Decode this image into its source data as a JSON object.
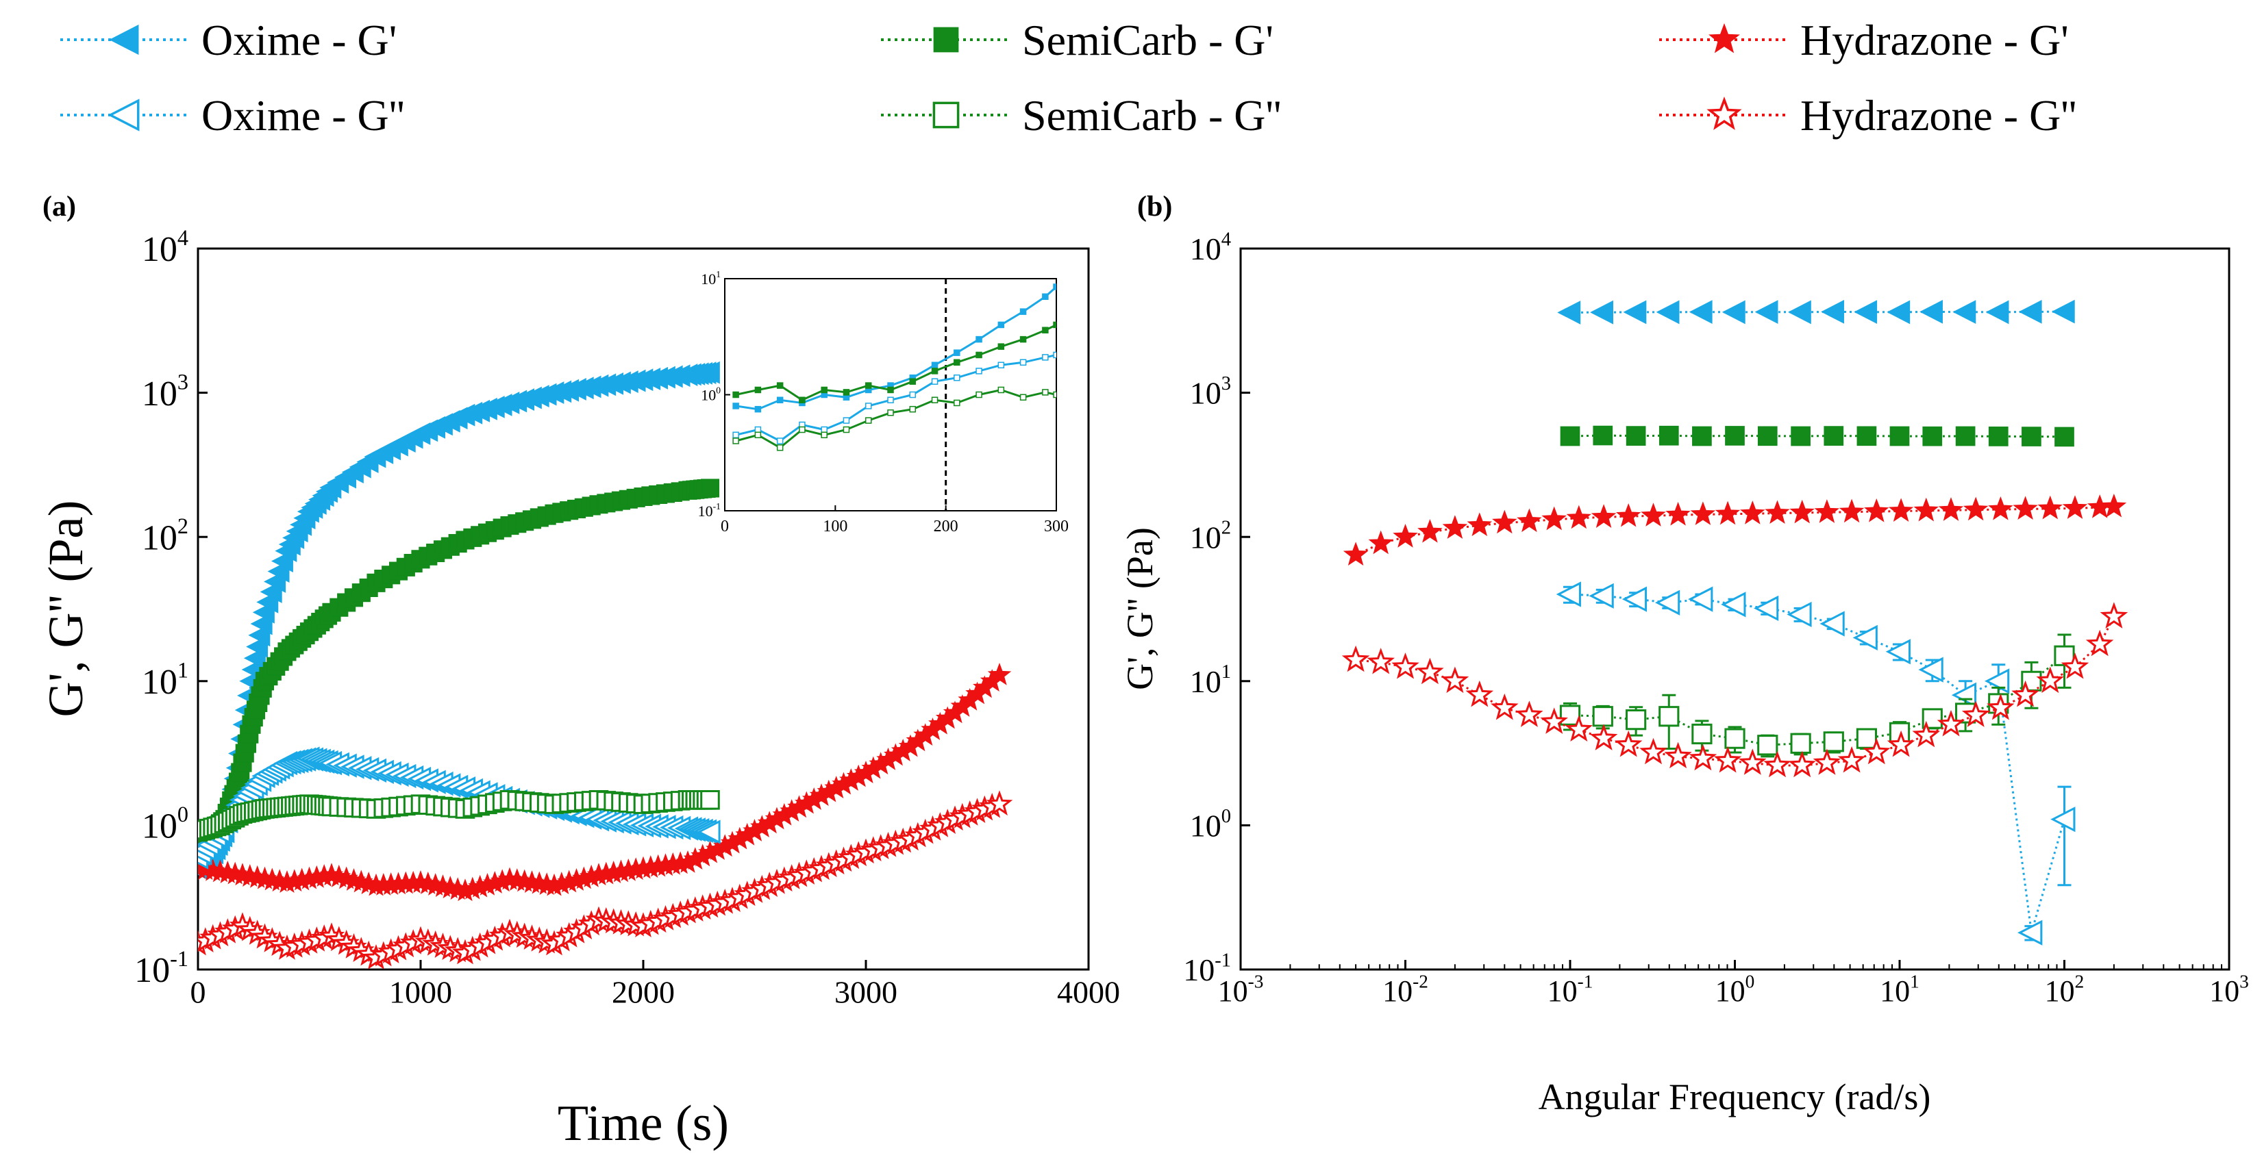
{
  "colors": {
    "oxime": "#1aa8e6",
    "semicarb": "#138a1a",
    "hydrazone": "#ee1111"
  },
  "legend": [
    {
      "label": "Oxime - G'",
      "series": "oxime",
      "filled": true,
      "marker": "triangle-left"
    },
    {
      "label": "SemiCarb - G'",
      "series": "semicarb",
      "filled": true,
      "marker": "square"
    },
    {
      "label": "Hydrazone - G'",
      "series": "hydrazone",
      "filled": true,
      "marker": "star"
    },
    {
      "label": "Oxime - G''",
      "series": "oxime",
      "filled": false,
      "marker": "triangle-left"
    },
    {
      "label": "SemiCarb - G''",
      "series": "semicarb",
      "filled": false,
      "marker": "square"
    },
    {
      "label": "Hydrazone - G''",
      "series": "hydrazone",
      "filled": false,
      "marker": "star"
    }
  ],
  "chart_data": [
    {
      "panel_label": "(a)",
      "type": "scatter",
      "title": "",
      "xlabel": "Time (s)",
      "ylabel": "G', G'' (Pa)",
      "x_scale": "linear",
      "y_scale": "log",
      "xlim": [
        0,
        4000
      ],
      "ylim": [
        0.1,
        10000
      ],
      "x_ticks": [
        0,
        1000,
        2000,
        3000,
        4000
      ],
      "x_tick_labels": [
        "0",
        "1000",
        "2000",
        "3000",
        "4000"
      ],
      "y_ticks": [
        0.1,
        1,
        10,
        100,
        1000,
        10000
      ],
      "y_tick_labels": [
        {
          "base": "10",
          "exp": "-1"
        },
        {
          "base": "10",
          "exp": "0"
        },
        {
          "base": "10",
          "exp": "1"
        },
        {
          "base": "10",
          "exp": "2"
        },
        {
          "base": "10",
          "exp": "3"
        },
        {
          "base": "10",
          "exp": "4"
        }
      ],
      "series": [
        {
          "name": "Oxime - G'",
          "color_key": "oxime",
          "marker": "triangle-left",
          "filled": true,
          "x": [
            0,
            60,
            120,
            180,
            240,
            300,
            400,
            500,
            600,
            800,
            1000,
            1200,
            1400,
            1600,
            1800,
            2000,
            2200,
            2300
          ],
          "y": [
            0.5,
            0.6,
            0.9,
            2.5,
            10,
            30,
            80,
            150,
            220,
            360,
            520,
            700,
            850,
            1000,
            1120,
            1230,
            1330,
            1380
          ]
        },
        {
          "name": "SemiCarb - G'",
          "color_key": "semicarb",
          "marker": "square",
          "filled": true,
          "x": [
            0,
            60,
            120,
            180,
            240,
            300,
            400,
            500,
            600,
            800,
            1000,
            1200,
            1400,
            1600,
            1800,
            2000,
            2200,
            2300
          ],
          "y": [
            0.8,
            0.9,
            1.1,
            2,
            5,
            10,
            16,
            22,
            30,
            48,
            70,
            95,
            120,
            145,
            168,
            190,
            210,
            218
          ]
        },
        {
          "name": "Hydrazone - G'",
          "color_key": "hydrazone",
          "marker": "star",
          "filled": true,
          "x": [
            0,
            200,
            400,
            600,
            800,
            1000,
            1200,
            1400,
            1600,
            1800,
            2000,
            2200,
            2400,
            2600,
            2800,
            3000,
            3200,
            3400,
            3600
          ],
          "y": [
            0.5,
            0.45,
            0.4,
            0.45,
            0.38,
            0.4,
            0.35,
            0.42,
            0.38,
            0.45,
            0.5,
            0.55,
            0.75,
            1.1,
            1.6,
            2.3,
            3.5,
            6,
            11
          ]
        },
        {
          "name": "Oxime - G''",
          "color_key": "oxime",
          "marker": "triangle-left",
          "filled": false,
          "x": [
            0,
            100,
            200,
            300,
            400,
            500,
            600,
            800,
            1000,
            1200,
            1400,
            1600,
            1800,
            2000,
            2200,
            2300
          ],
          "y": [
            0.6,
            0.9,
            1.5,
            2.2,
            2.7,
            2.9,
            2.7,
            2.4,
            2.1,
            1.8,
            1.5,
            1.3,
            1.1,
            1.0,
            0.95,
            0.9
          ]
        },
        {
          "name": "SemiCarb - G''",
          "color_key": "semicarb",
          "marker": "square",
          "filled": false,
          "x": [
            0,
            100,
            200,
            300,
            400,
            500,
            600,
            800,
            1000,
            1200,
            1400,
            1600,
            1800,
            2000,
            2200,
            2300
          ],
          "y": [
            0.9,
            1.0,
            1.2,
            1.3,
            1.35,
            1.4,
            1.35,
            1.3,
            1.4,
            1.3,
            1.5,
            1.4,
            1.5,
            1.4,
            1.5,
            1.5
          ]
        },
        {
          "name": "Hydrazone - G''",
          "color_key": "hydrazone",
          "marker": "star",
          "filled": false,
          "x": [
            0,
            200,
            400,
            600,
            800,
            1000,
            1200,
            1400,
            1600,
            1800,
            2000,
            2200,
            2400,
            2600,
            2800,
            3000,
            3200,
            3400,
            3600
          ],
          "y": [
            0.15,
            0.2,
            0.14,
            0.17,
            0.12,
            0.16,
            0.13,
            0.18,
            0.15,
            0.22,
            0.2,
            0.25,
            0.3,
            0.4,
            0.5,
            0.65,
            0.8,
            1.1,
            1.4
          ]
        }
      ],
      "inset": {
        "type": "line",
        "xlim": [
          0,
          300
        ],
        "ylim": [
          0.1,
          10
        ],
        "x_ticks": [
          0,
          100,
          200,
          300
        ],
        "x_tick_labels": [
          "0",
          "100",
          "200",
          "300"
        ],
        "y_ticks": [
          0.1,
          1,
          10
        ],
        "y_tick_labels": [
          {
            "base": "10",
            "exp": "-1"
          },
          {
            "base": "10",
            "exp": "0"
          },
          {
            "base": "10",
            "exp": "1"
          }
        ],
        "vline_x": 200,
        "series": [
          {
            "name": "Oxime - G'",
            "color_key": "oxime",
            "filled": true,
            "x": [
              10,
              30,
              50,
              70,
              90,
              110,
              130,
              150,
              170,
              190,
              210,
              230,
              250,
              270,
              290,
              300
            ],
            "y": [
              0.8,
              0.75,
              0.9,
              0.85,
              1.0,
              0.95,
              1.1,
              1.2,
              1.4,
              1.8,
              2.3,
              3.0,
              4.0,
              5.2,
              7.0,
              8.5
            ]
          },
          {
            "name": "SemiCarb - G'",
            "color_key": "semicarb",
            "filled": true,
            "x": [
              10,
              30,
              50,
              70,
              90,
              110,
              130,
              150,
              170,
              190,
              210,
              230,
              250,
              270,
              290,
              300
            ],
            "y": [
              1.0,
              1.1,
              1.2,
              0.9,
              1.1,
              1.05,
              1.2,
              1.1,
              1.3,
              1.6,
              1.9,
              2.2,
              2.6,
              3.0,
              3.6,
              4.0
            ]
          },
          {
            "name": "Oxime - G''",
            "color_key": "oxime",
            "filled": false,
            "x": [
              10,
              30,
              50,
              70,
              90,
              110,
              130,
              150,
              170,
              190,
              210,
              230,
              250,
              270,
              290,
              300
            ],
            "y": [
              0.45,
              0.5,
              0.4,
              0.55,
              0.5,
              0.6,
              0.8,
              0.9,
              1.0,
              1.3,
              1.4,
              1.6,
              1.8,
              1.9,
              2.1,
              2.2
            ]
          },
          {
            "name": "SemiCarb - G''",
            "color_key": "semicarb",
            "filled": false,
            "x": [
              10,
              30,
              50,
              70,
              90,
              110,
              130,
              150,
              170,
              190,
              210,
              230,
              250,
              270,
              290,
              300
            ],
            "y": [
              0.4,
              0.45,
              0.35,
              0.5,
              0.45,
              0.5,
              0.6,
              0.7,
              0.75,
              0.9,
              0.85,
              1.0,
              1.1,
              0.95,
              1.05,
              1.0
            ]
          }
        ]
      }
    },
    {
      "panel_label": "(b)",
      "type": "scatter",
      "title": "",
      "xlabel": "Angular Frequency (rad/s)",
      "ylabel": "G', G'' (Pa)",
      "x_scale": "log",
      "y_scale": "log",
      "xlim": [
        0.001,
        1000
      ],
      "ylim": [
        0.1,
        10000
      ],
      "x_ticks": [
        0.001,
        0.01,
        0.1,
        1,
        10,
        100,
        1000
      ],
      "x_tick_labels": [
        {
          "base": "10",
          "exp": "-3"
        },
        {
          "base": "10",
          "exp": "-2"
        },
        {
          "base": "10",
          "exp": "-1"
        },
        {
          "base": "10",
          "exp": "0"
        },
        {
          "base": "10",
          "exp": "1"
        },
        {
          "base": "10",
          "exp": "2"
        },
        {
          "base": "10",
          "exp": "3"
        }
      ],
      "y_ticks": [
        0.1,
        1,
        10,
        100,
        1000,
        10000
      ],
      "y_tick_labels": [
        {
          "base": "10",
          "exp": "-1"
        },
        {
          "base": "10",
          "exp": "0"
        },
        {
          "base": "10",
          "exp": "1"
        },
        {
          "base": "10",
          "exp": "2"
        },
        {
          "base": "10",
          "exp": "3"
        },
        {
          "base": "10",
          "exp": "4"
        }
      ],
      "series": [
        {
          "name": "Oxime - G'",
          "color_key": "oxime",
          "marker": "triangle-left",
          "filled": true,
          "x": [
            0.1,
            0.158,
            0.251,
            0.398,
            0.631,
            1,
            1.58,
            2.51,
            3.98,
            6.31,
            10,
            15.8,
            25.1,
            39.8,
            63.1,
            100
          ],
          "y": [
            3600,
            3610,
            3620,
            3620,
            3630,
            3620,
            3630,
            3620,
            3640,
            3630,
            3620,
            3640,
            3630,
            3620,
            3640,
            3650
          ]
        },
        {
          "name": "SemiCarb - G'",
          "color_key": "semicarb",
          "marker": "square",
          "filled": true,
          "x": [
            0.1,
            0.158,
            0.251,
            0.398,
            0.631,
            1,
            1.58,
            2.51,
            3.98,
            6.31,
            10,
            15.8,
            25.1,
            39.8,
            63.1,
            100
          ],
          "y": [
            500,
            505,
            502,
            504,
            500,
            503,
            501,
            500,
            502,
            501,
            500,
            499,
            500,
            498,
            497,
            495
          ]
        },
        {
          "name": "Hydrazone - G'",
          "color_key": "hydrazone",
          "marker": "star",
          "filled": true,
          "x": [
            0.005,
            0.0071,
            0.01,
            0.0141,
            0.02,
            0.0282,
            0.04,
            0.0565,
            0.08,
            0.113,
            0.16,
            0.226,
            0.32,
            0.452,
            0.64,
            0.905,
            1.28,
            1.81,
            2.56,
            3.62,
            5.12,
            7.24,
            10.2,
            14.5,
            20.5,
            29,
            41,
            58,
            82,
            116,
            164,
            200
          ],
          "y": [
            75,
            90,
            100,
            108,
            115,
            120,
            125,
            128,
            132,
            135,
            137,
            139,
            140,
            142,
            143,
            144,
            145,
            146,
            147,
            148,
            149,
            150,
            151,
            152,
            153,
            154,
            155,
            156,
            157,
            158,
            160,
            162
          ]
        },
        {
          "name": "Oxime - G''",
          "color_key": "oxime",
          "marker": "triangle-left",
          "filled": false,
          "x": [
            0.1,
            0.158,
            0.251,
            0.398,
            0.631,
            1,
            1.58,
            2.51,
            3.98,
            6.31,
            10,
            15.8,
            25.1,
            39.8,
            63.1,
            100
          ],
          "y": [
            40,
            39,
            37,
            35,
            37,
            34,
            32,
            29,
            25,
            20,
            16,
            12,
            8,
            10,
            0.18,
            1.1
          ],
          "yerr": [
            5,
            4,
            4,
            3,
            3,
            3,
            3,
            3,
            2,
            2,
            2,
            2,
            2,
            3,
            0.02,
            0.75
          ]
        },
        {
          "name": "SemiCarb - G''",
          "color_key": "semicarb",
          "marker": "square",
          "filled": false,
          "x": [
            0.1,
            0.158,
            0.251,
            0.398,
            0.631,
            1,
            1.58,
            2.51,
            3.98,
            6.31,
            10,
            15.8,
            25.1,
            39.8,
            63.1,
            100
          ],
          "y": [
            5.8,
            5.7,
            5.4,
            5.7,
            4.3,
            4.0,
            3.6,
            3.7,
            3.8,
            4.0,
            4.4,
            5.5,
            6.0,
            7.0,
            10,
            15
          ],
          "yerr": [
            1.2,
            1,
            1.2,
            2.3,
            1,
            0.8,
            0.6,
            0.6,
            0.6,
            0.6,
            0.8,
            0.8,
            1.5,
            2,
            3.5,
            6
          ]
        },
        {
          "name": "Hydrazone - G''",
          "color_key": "hydrazone",
          "marker": "star",
          "filled": false,
          "x": [
            0.005,
            0.0071,
            0.01,
            0.0141,
            0.02,
            0.0282,
            0.04,
            0.0565,
            0.08,
            0.113,
            0.16,
            0.226,
            0.32,
            0.452,
            0.64,
            0.905,
            1.28,
            1.81,
            2.56,
            3.62,
            5.12,
            7.24,
            10.2,
            14.5,
            20.5,
            29,
            41,
            58,
            82,
            116,
            164,
            200
          ],
          "y": [
            14,
            13.5,
            12.5,
            11.5,
            10,
            8,
            6.5,
            5.8,
            5.2,
            4.6,
            4.0,
            3.6,
            3.2,
            3.0,
            2.9,
            2.8,
            2.7,
            2.6,
            2.6,
            2.7,
            2.8,
            3.2,
            3.6,
            4.2,
            5.0,
            5.8,
            6.5,
            8,
            10,
            12.5,
            18,
            28
          ]
        }
      ]
    }
  ]
}
